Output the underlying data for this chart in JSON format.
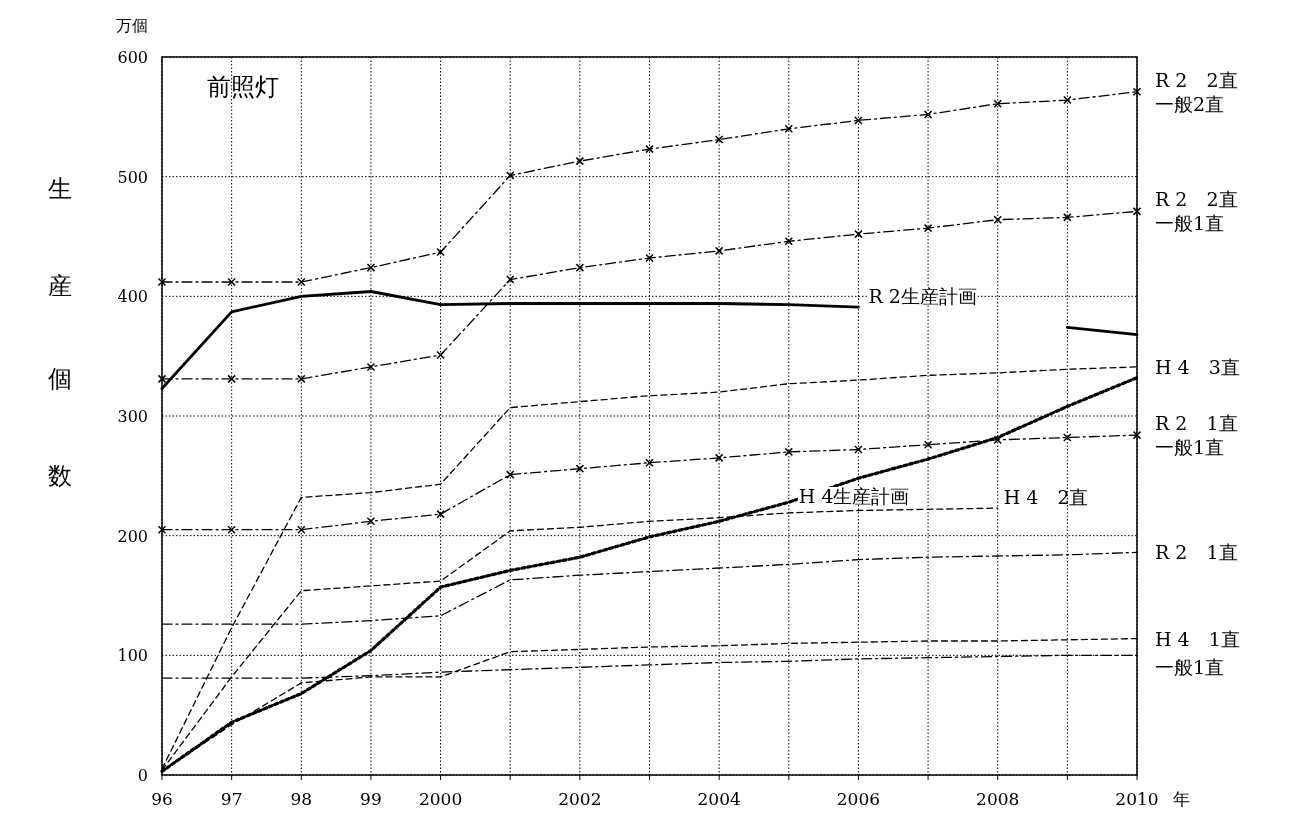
{
  "chart_data": {
    "type": "line",
    "title": "前照灯",
    "xlabel": "年",
    "ylabel": "生産個数",
    "annotations": [
      "万個",
      {
        "text": "R 2生産計画",
        "x": 2006,
        "y": 391
      },
      {
        "text": "H 4生産計画",
        "x": 2005,
        "y": 224
      }
    ],
    "x": [
      1996,
      1997,
      1998,
      1999,
      2000,
      2001,
      2002,
      2003,
      2004,
      2005,
      2006,
      2007,
      2008,
      2009,
      2010
    ],
    "xlim": [
      1996,
      2010
    ],
    "xticks": [
      {
        "value": 1996,
        "label": "96"
      },
      {
        "value": 1997,
        "label": "97"
      },
      {
        "value": 1998,
        "label": "98"
      },
      {
        "value": 1999,
        "label": "99"
      },
      2000,
      {
        "value": 2001,
        "label": null
      },
      2002,
      {
        "value": 2003,
        "label": null
      },
      2004,
      {
        "value": 2005,
        "label": null
      },
      2006,
      {
        "value": 2007,
        "label": null
      },
      2008,
      {
        "value": 2009,
        "label": null
      },
      2010
    ],
    "ylim": [
      0,
      600
    ],
    "yticks": [
      0,
      100,
      200,
      300,
      400,
      500,
      600
    ],
    "grid": true,
    "legend": false,
    "series": [
      {
        "name": "R 2　2直一般2直",
        "color": "#000000",
        "line_style": "dashdot",
        "marker": "cross",
        "values": [
          412,
          412,
          412,
          424,
          437,
          501,
          513,
          523,
          531,
          540,
          547,
          552,
          561,
          564,
          571
        ]
      },
      {
        "name": "R 2　2直一般1直",
        "color": "#000000",
        "line_style": "dashdot",
        "marker": "cross",
        "values": [
          331,
          331,
          331,
          341,
          351,
          414,
          424,
          432,
          438,
          446,
          452,
          457,
          464,
          466,
          471
        ]
      },
      {
        "color": "#000000",
        "line_style": "solid",
        "marker": "none",
        "values": [
          323,
          387,
          400,
          404,
          393,
          394,
          394,
          394,
          394,
          393,
          391,
          null,
          null,
          374,
          368
        ]
      },
      {
        "name": "H 4　3直",
        "color": "#000000",
        "line_style": "dashed",
        "marker": "none",
        "values": [
          5,
          123,
          232,
          236,
          243,
          307,
          312,
          317,
          320,
          327,
          330,
          334,
          336,
          339,
          341
        ]
      },
      {
        "color": "#000000",
        "line_style": "dotted",
        "marker": "none",
        "values": [
          3,
          44,
          68,
          104,
          157,
          171,
          182,
          199,
          212,
          228,
          248,
          264,
          282,
          308,
          332
        ]
      },
      {
        "name": "R 2　1直一般1直",
        "color": "#000000",
        "line_style": "dashdot",
        "marker": "cross",
        "values": [
          205,
          205,
          205,
          212,
          218,
          251,
          256,
          261,
          265,
          270,
          272,
          276,
          280,
          282,
          284
        ]
      },
      {
        "name": "H 4　2直",
        "color": "#000000",
        "line_style": "dashed",
        "marker": "none",
        "values": [
          4,
          82,
          154,
          158,
          162,
          204,
          207,
          212,
          215,
          219,
          221,
          222,
          223,
          null,
          null
        ]
      },
      {
        "name": "R 2　1直",
        "color": "#000000",
        "line_style": "dashdot",
        "marker": "none",
        "values": [
          126,
          126,
          126,
          129,
          133,
          163,
          167,
          170,
          173,
          176,
          180,
          182,
          183,
          184,
          186
        ]
      },
      {
        "name": "H 4　1直",
        "color": "#000000",
        "line_style": "dashed",
        "marker": "none",
        "values": [
          3,
          42,
          77,
          82,
          82,
          103,
          105,
          107,
          108,
          110,
          111,
          112,
          112,
          113,
          114
        ]
      },
      {
        "name": "一般1直",
        "color": "#000000",
        "line_style": "dashdot",
        "marker": "none",
        "values": [
          81,
          81,
          81,
          83,
          86,
          88,
          90,
          92,
          94,
          95,
          97,
          98,
          99,
          100,
          100
        ]
      }
    ]
  }
}
